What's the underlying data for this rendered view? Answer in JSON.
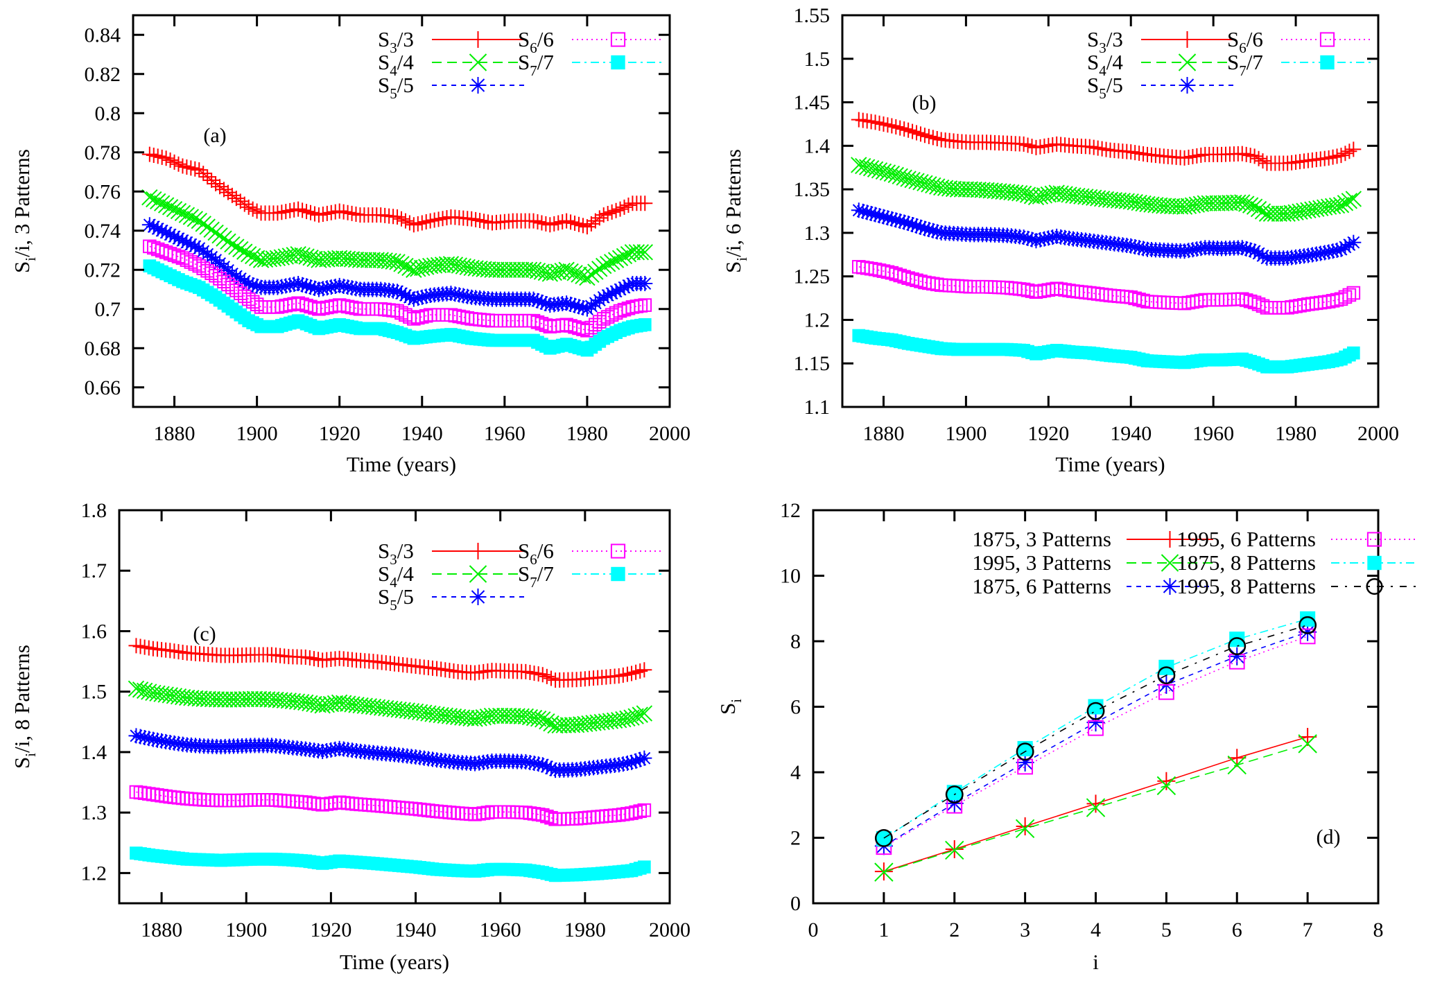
{
  "figure": {
    "panels_order": [
      "a",
      "b",
      "c",
      "d"
    ]
  },
  "chart_data": [
    {
      "id": "a",
      "type": "line",
      "panel_label": "(a)",
      "title": "",
      "xlabel": "Time (years)",
      "ylabel": {
        "base": "S",
        "sub": "i",
        "rest": "/i, 3 Patterns"
      },
      "xlim": [
        1870,
        2000
      ],
      "ylim": [
        0.65,
        0.85
      ],
      "xticks": [
        1880,
        1900,
        1920,
        1940,
        1960,
        1980,
        2000
      ],
      "yticks": [
        0.66,
        0.68,
        0.7,
        0.72,
        0.74,
        0.76,
        0.78,
        0.8,
        0.82,
        0.84
      ],
      "ytick_labels": [
        "0.66",
        "0.68",
        "0.7",
        "0.72",
        "0.74",
        "0.76",
        "0.78",
        "0.8",
        "0.82",
        "0.84"
      ],
      "grid": false,
      "legend": {
        "position": "top-right",
        "columns": 2
      },
      "x": [
        1874,
        1878,
        1882,
        1886,
        1890,
        1894,
        1898,
        1901,
        1905,
        1910,
        1915,
        1920,
        1925,
        1930,
        1934,
        1938,
        1942,
        1947,
        1952,
        1957,
        1962,
        1967,
        1971,
        1975,
        1980,
        1984,
        1988,
        1991,
        1994
      ],
      "series": [
        {
          "name": "S3/3",
          "label_base": "S",
          "label_sub": "3",
          "label_rest": "/3",
          "color": "#ff0000",
          "marker": "plus",
          "dash": "solid",
          "values": [
            0.779,
            0.777,
            0.773,
            0.771,
            0.764,
            0.758,
            0.752,
            0.749,
            0.749,
            0.751,
            0.748,
            0.75,
            0.748,
            0.748,
            0.747,
            0.743,
            0.745,
            0.747,
            0.746,
            0.744,
            0.745,
            0.745,
            0.743,
            0.745,
            0.742,
            0.748,
            0.751,
            0.754,
            0.754
          ]
        },
        {
          "name": "S4/4",
          "label_base": "S",
          "label_sub": "4",
          "label_rest": "/4",
          "color": "#00ee00",
          "marker": "x",
          "dash": "dashed",
          "values": [
            0.757,
            0.753,
            0.749,
            0.745,
            0.739,
            0.733,
            0.728,
            0.725,
            0.726,
            0.728,
            0.725,
            0.726,
            0.725,
            0.725,
            0.724,
            0.72,
            0.722,
            0.723,
            0.721,
            0.72,
            0.72,
            0.72,
            0.718,
            0.72,
            0.716,
            0.722,
            0.726,
            0.729,
            0.729
          ]
        },
        {
          "name": "S5/5",
          "label_base": "S",
          "label_sub": "5",
          "label_rest": "/5",
          "color": "#0000ff",
          "marker": "star",
          "dash": "short-dashed",
          "values": [
            0.743,
            0.739,
            0.735,
            0.731,
            0.725,
            0.718,
            0.713,
            0.711,
            0.711,
            0.713,
            0.71,
            0.712,
            0.71,
            0.71,
            0.709,
            0.705,
            0.707,
            0.708,
            0.706,
            0.705,
            0.705,
            0.705,
            0.702,
            0.703,
            0.7,
            0.706,
            0.71,
            0.713,
            0.713
          ]
        },
        {
          "name": "S6/6",
          "label_base": "S",
          "label_sub": "6",
          "label_rest": "/6",
          "color": "#ff00ff",
          "marker": "square-open",
          "dash": "dotted",
          "values": [
            0.732,
            0.729,
            0.726,
            0.722,
            0.717,
            0.711,
            0.705,
            0.701,
            0.701,
            0.703,
            0.7,
            0.702,
            0.7,
            0.7,
            0.699,
            0.695,
            0.697,
            0.697,
            0.695,
            0.694,
            0.694,
            0.694,
            0.691,
            0.692,
            0.689,
            0.695,
            0.699,
            0.701,
            0.702
          ]
        },
        {
          "name": "S7/7",
          "label_base": "S",
          "label_sub": "7",
          "label_rest": "/7",
          "color": "#00ffff",
          "marker": "square-filled",
          "dash": "dash-dot",
          "values": [
            0.722,
            0.718,
            0.714,
            0.711,
            0.706,
            0.7,
            0.694,
            0.691,
            0.691,
            0.694,
            0.69,
            0.692,
            0.69,
            0.69,
            0.688,
            0.685,
            0.686,
            0.687,
            0.685,
            0.684,
            0.684,
            0.684,
            0.68,
            0.682,
            0.679,
            0.685,
            0.689,
            0.691,
            0.692
          ]
        }
      ]
    },
    {
      "id": "b",
      "type": "line",
      "panel_label": "(b)",
      "title": "",
      "xlabel": "Time (years)",
      "ylabel": {
        "base": "S",
        "sub": "i",
        "rest": "/i, 6 Patterns"
      },
      "xlim": [
        1870,
        2000
      ],
      "ylim": [
        1.1,
        1.55
      ],
      "xticks": [
        1880,
        1900,
        1920,
        1940,
        1960,
        1980,
        2000
      ],
      "yticks": [
        1.1,
        1.15,
        1.2,
        1.25,
        1.3,
        1.35,
        1.4,
        1.45,
        1.5,
        1.55
      ],
      "ytick_labels": [
        "1.1",
        "1.15",
        "1.2",
        "1.25",
        "1.3",
        "1.35",
        "1.4",
        "1.45",
        "1.5",
        "1.55"
      ],
      "grid": false,
      "legend": {
        "position": "top-right",
        "columns": 2
      },
      "x": [
        1874,
        1878,
        1882,
        1886,
        1890,
        1894,
        1898,
        1901,
        1905,
        1910,
        1914,
        1917,
        1922,
        1926,
        1930,
        1935,
        1940,
        1944,
        1948,
        1953,
        1958,
        1962,
        1967,
        1970,
        1973,
        1978,
        1983,
        1988,
        1991,
        1994
      ],
      "series": [
        {
          "name": "S3/3",
          "label_base": "S",
          "label_sub": "3",
          "label_rest": "/3",
          "color": "#ff0000",
          "marker": "plus",
          "dash": "solid",
          "values": [
            1.43,
            1.427,
            1.423,
            1.418,
            1.412,
            1.407,
            1.405,
            1.404,
            1.404,
            1.403,
            1.402,
            1.398,
            1.402,
            1.4,
            1.399,
            1.395,
            1.393,
            1.39,
            1.388,
            1.386,
            1.39,
            1.39,
            1.391,
            1.388,
            1.38,
            1.38,
            1.383,
            1.386,
            1.389,
            1.396
          ]
        },
        {
          "name": "S4/4",
          "label_base": "S",
          "label_sub": "4",
          "label_rest": "/4",
          "color": "#00ee00",
          "marker": "x",
          "dash": "dashed",
          "values": [
            1.378,
            1.373,
            1.368,
            1.362,
            1.357,
            1.352,
            1.35,
            1.35,
            1.349,
            1.347,
            1.345,
            1.341,
            1.346,
            1.343,
            1.341,
            1.338,
            1.336,
            1.333,
            1.331,
            1.33,
            1.334,
            1.334,
            1.335,
            1.33,
            1.322,
            1.322,
            1.326,
            1.33,
            1.332,
            1.339
          ]
        },
        {
          "name": "S5/5",
          "label_base": "S",
          "label_sub": "5",
          "label_rest": "/5",
          "color": "#0000ff",
          "marker": "star",
          "dash": "short-dashed",
          "values": [
            1.326,
            1.321,
            1.316,
            1.311,
            1.305,
            1.3,
            1.299,
            1.298,
            1.298,
            1.297,
            1.295,
            1.291,
            1.296,
            1.293,
            1.291,
            1.288,
            1.285,
            1.281,
            1.28,
            1.279,
            1.283,
            1.282,
            1.283,
            1.279,
            1.271,
            1.271,
            1.274,
            1.278,
            1.281,
            1.289
          ]
        },
        {
          "name": "S6/6",
          "label_base": "S",
          "label_sub": "6",
          "label_rest": "/6",
          "color": "#ff00ff",
          "marker": "square-open",
          "dash": "dotted",
          "values": [
            1.261,
            1.258,
            1.254,
            1.248,
            1.243,
            1.24,
            1.239,
            1.238,
            1.238,
            1.237,
            1.235,
            1.232,
            1.236,
            1.233,
            1.231,
            1.228,
            1.226,
            1.221,
            1.22,
            1.219,
            1.223,
            1.223,
            1.224,
            1.22,
            1.214,
            1.214,
            1.218,
            1.221,
            1.224,
            1.231
          ]
        },
        {
          "name": "S7/7",
          "label_base": "S",
          "label_sub": "7",
          "label_rest": "/7",
          "color": "#00ffff",
          "marker": "square-filled",
          "dash": "dash-dot",
          "values": [
            1.182,
            1.179,
            1.177,
            1.173,
            1.17,
            1.167,
            1.166,
            1.166,
            1.166,
            1.166,
            1.165,
            1.161,
            1.165,
            1.163,
            1.162,
            1.159,
            1.157,
            1.153,
            1.152,
            1.151,
            1.154,
            1.154,
            1.155,
            1.151,
            1.146,
            1.146,
            1.149,
            1.152,
            1.155,
            1.162
          ]
        }
      ]
    },
    {
      "id": "c",
      "type": "line",
      "panel_label": "(c)",
      "title": "",
      "xlabel": "Time (years)",
      "ylabel": {
        "base": "S",
        "sub": "i",
        "rest": "/i, 8 Patterns"
      },
      "xlim": [
        1870,
        2000
      ],
      "ylim": [
        1.15,
        1.8
      ],
      "xticks": [
        1880,
        1900,
        1920,
        1940,
        1960,
        1980,
        2000
      ],
      "yticks": [
        1.2,
        1.3,
        1.4,
        1.5,
        1.6,
        1.7,
        1.8
      ],
      "ytick_labels": [
        "1.2",
        "1.3",
        "1.4",
        "1.5",
        "1.6",
        "1.7",
        "1.8"
      ],
      "grid": false,
      "legend": {
        "position": "top-right",
        "columns": 2
      },
      "x": [
        1874,
        1878,
        1882,
        1886,
        1890,
        1894,
        1898,
        1902,
        1906,
        1910,
        1914,
        1918,
        1922,
        1926,
        1930,
        1935,
        1940,
        1945,
        1950,
        1954,
        1958,
        1962,
        1966,
        1970,
        1973,
        1978,
        1983,
        1988,
        1991,
        1994
      ],
      "series": [
        {
          "name": "S3/3",
          "label_base": "S",
          "label_sub": "3",
          "label_rest": "/3",
          "color": "#ff0000",
          "marker": "plus",
          "dash": "solid",
          "values": [
            1.576,
            1.571,
            1.568,
            1.564,
            1.562,
            1.56,
            1.56,
            1.561,
            1.561,
            1.558,
            1.557,
            1.552,
            1.555,
            1.552,
            1.55,
            1.546,
            1.542,
            1.538,
            1.533,
            1.531,
            1.535,
            1.534,
            1.533,
            1.528,
            1.519,
            1.52,
            1.523,
            1.526,
            1.53,
            1.536
          ]
        },
        {
          "name": "S4/4",
          "label_base": "S",
          "label_sub": "4",
          "label_rest": "/4",
          "color": "#00ee00",
          "marker": "x",
          "dash": "dashed",
          "values": [
            1.505,
            1.498,
            1.494,
            1.49,
            1.488,
            1.487,
            1.487,
            1.488,
            1.487,
            1.485,
            1.482,
            1.477,
            1.482,
            1.478,
            1.475,
            1.471,
            1.467,
            1.462,
            1.458,
            1.455,
            1.46,
            1.46,
            1.459,
            1.454,
            1.444,
            1.445,
            1.449,
            1.453,
            1.457,
            1.464
          ]
        },
        {
          "name": "S5/5",
          "label_base": "S",
          "label_sub": "5",
          "label_rest": "/5",
          "color": "#0000ff",
          "marker": "star",
          "dash": "short-dashed",
          "values": [
            1.427,
            1.421,
            1.416,
            1.412,
            1.41,
            1.409,
            1.41,
            1.411,
            1.411,
            1.408,
            1.405,
            1.401,
            1.406,
            1.402,
            1.399,
            1.396,
            1.392,
            1.387,
            1.383,
            1.381,
            1.385,
            1.385,
            1.384,
            1.379,
            1.37,
            1.371,
            1.375,
            1.379,
            1.383,
            1.39
          ]
        },
        {
          "name": "S6/6",
          "label_base": "S",
          "label_sub": "6",
          "label_rest": "/6",
          "color": "#ff00ff",
          "marker": "square-open",
          "dash": "dotted",
          "values": [
            1.334,
            1.33,
            1.326,
            1.323,
            1.321,
            1.32,
            1.32,
            1.321,
            1.321,
            1.319,
            1.317,
            1.313,
            1.317,
            1.314,
            1.312,
            1.309,
            1.306,
            1.302,
            1.299,
            1.297,
            1.301,
            1.301,
            1.3,
            1.296,
            1.289,
            1.29,
            1.293,
            1.296,
            1.299,
            1.304
          ]
        },
        {
          "name": "S7/7",
          "label_base": "S",
          "label_sub": "7",
          "label_rest": "/7",
          "color": "#00ffff",
          "marker": "square-filled",
          "dash": "dash-dot",
          "values": [
            1.233,
            1.229,
            1.226,
            1.223,
            1.222,
            1.221,
            1.222,
            1.223,
            1.223,
            1.222,
            1.22,
            1.216,
            1.22,
            1.218,
            1.216,
            1.213,
            1.21,
            1.206,
            1.204,
            1.203,
            1.206,
            1.206,
            1.205,
            1.201,
            1.196,
            1.197,
            1.199,
            1.202,
            1.204,
            1.21
          ]
        }
      ]
    },
    {
      "id": "d",
      "type": "line",
      "panel_label": "(d)",
      "title": "",
      "xlabel": "i",
      "ylabel": {
        "base": "S",
        "sub": "i",
        "rest": ""
      },
      "xlim": [
        0,
        8
      ],
      "ylim": [
        0,
        12
      ],
      "xticks": [
        0,
        1,
        2,
        3,
        4,
        5,
        6,
        7,
        8
      ],
      "yticks": [
        0,
        2,
        4,
        6,
        8,
        10,
        12
      ],
      "ytick_labels": [
        "0",
        "2",
        "4",
        "6",
        "8",
        "10",
        "12"
      ],
      "grid": false,
      "legend": {
        "position": "top",
        "columns": 2
      },
      "x": [
        1,
        2,
        3,
        4,
        5,
        6,
        7
      ],
      "series": [
        {
          "name": "1875, 3 Patterns",
          "color": "#ff0000",
          "marker": "plus",
          "dash": "solid",
          "values": [
            0.97,
            1.65,
            2.35,
            3.04,
            3.73,
            4.44,
            5.08
          ]
        },
        {
          "name": "1995, 3 Patterns",
          "color": "#00ee00",
          "marker": "x",
          "dash": "dashed",
          "values": [
            0.95,
            1.62,
            2.28,
            2.92,
            3.59,
            4.22,
            4.87
          ]
        },
        {
          "name": "1875, 6 Patterns",
          "color": "#0000ff",
          "marker": "star",
          "dash": "short-dashed",
          "values": [
            1.75,
            3.05,
            4.3,
            5.52,
            6.67,
            7.54,
            8.28
          ]
        },
        {
          "name": "1995, 6 Patterns",
          "color": "#ff00ff",
          "marker": "square-open",
          "dash": "dotted",
          "values": [
            1.72,
            2.98,
            4.17,
            5.35,
            6.45,
            7.38,
            8.15
          ]
        },
        {
          "name": "1875, 8 Patterns",
          "color": "#00ffff",
          "marker": "square-filled",
          "dash": "dash-dot",
          "values": [
            1.97,
            3.38,
            4.72,
            6.0,
            7.2,
            8.06,
            8.68
          ]
        },
        {
          "name": "1995, 8 Patterns",
          "color": "#000000",
          "marker": "circle-open",
          "dash": "dash-dot-sparse",
          "values": [
            1.99,
            3.32,
            4.63,
            5.87,
            6.96,
            7.85,
            8.49
          ]
        }
      ]
    }
  ]
}
